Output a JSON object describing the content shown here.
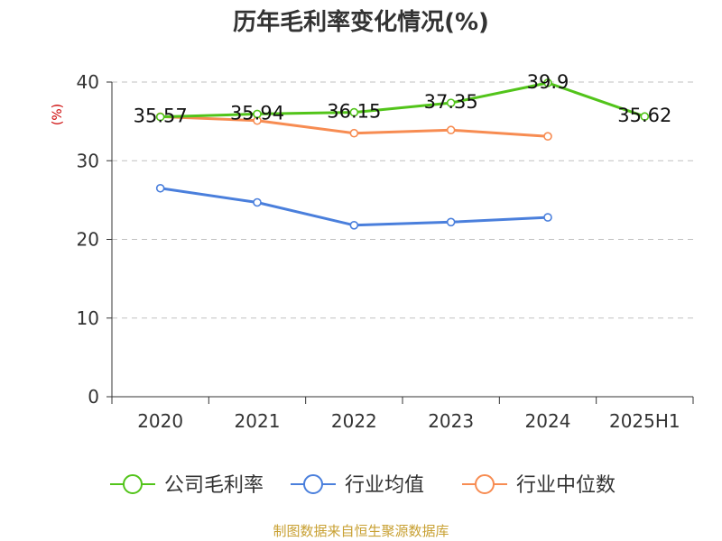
{
  "chart_data": {
    "type": "line",
    "title": "历年毛利率变化情况(%)",
    "ylabel": "(%)",
    "xlabel": "",
    "categories": [
      "2020",
      "2021",
      "2022",
      "2023",
      "2024",
      "2025H1"
    ],
    "ylim": [
      0,
      40
    ],
    "yticks": [
      0,
      10,
      20,
      30,
      40
    ],
    "grid": true,
    "legend_position": "bottom",
    "series": [
      {
        "name": "公司毛利率",
        "color": "#52c41a",
        "values": [
          35.57,
          35.94,
          36.15,
          37.35,
          39.9,
          35.62
        ],
        "labels": [
          "35.57",
          "35.94",
          "36.15",
          "37.35",
          "39.9",
          "35.62"
        ]
      },
      {
        "name": "行业均值",
        "color": "#4a7fdc",
        "values": [
          26.5,
          24.7,
          21.8,
          22.2,
          22.8,
          null
        ]
      },
      {
        "name": "行业中位数",
        "color": "#f78c52",
        "values": [
          35.6,
          35.1,
          33.5,
          33.9,
          33.1,
          null
        ]
      }
    ]
  },
  "source_note": "制图数据来自恒生聚源数据库",
  "colors": {
    "axis": "#333333",
    "grid": "#c0c0c0",
    "ylabel": "#cc0000",
    "source": "#c8a032"
  }
}
